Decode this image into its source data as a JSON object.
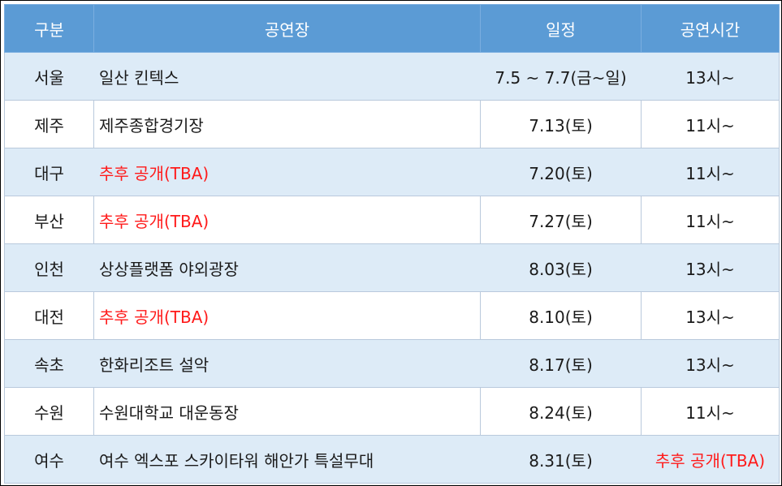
{
  "header": {
    "region": "구분",
    "venue": "공연장",
    "date": "일정",
    "time": "공연시간"
  },
  "rows": [
    {
      "region": "서울",
      "venue": "일산 킨텍스",
      "date": "7.5 ~ 7.7(금~일)",
      "time": "13시~"
    },
    {
      "region": "제주",
      "venue": "제주종합경기장",
      "date": "7.13(토)",
      "time": "11시~"
    },
    {
      "region": "대구",
      "venue": "추후 공개(TBA)",
      "date": "7.20(토)",
      "time": "11시~"
    },
    {
      "region": "부산",
      "venue": "추후 공개(TBA)",
      "date": "7.27(토)",
      "time": "11시~"
    },
    {
      "region": "인천",
      "venue": "상상플랫폼 야외광장",
      "date": "8.03(토)",
      "time": "13시~"
    },
    {
      "region": "대전",
      "venue": "추후 공개(TBA)",
      "date": "8.10(토)",
      "time": "13시~"
    },
    {
      "region": "속초",
      "venue": "한화리조트 설악",
      "date": "8.17(토)",
      "time": "13시~"
    },
    {
      "region": "수원",
      "venue": "수원대학교 대운동장",
      "date": "8.24(토)",
      "time": "11시~"
    },
    {
      "region": "여수",
      "venue": "여수 엑스포 스카이타워 해안가 특설무대",
      "date": "8.31(토)",
      "time": "추후 공개(TBA)"
    }
  ],
  "colors": {
    "header_bg": "#5b9bd5",
    "shaded_row": "#ddebf7",
    "tba_text": "#ff1a1a"
  }
}
